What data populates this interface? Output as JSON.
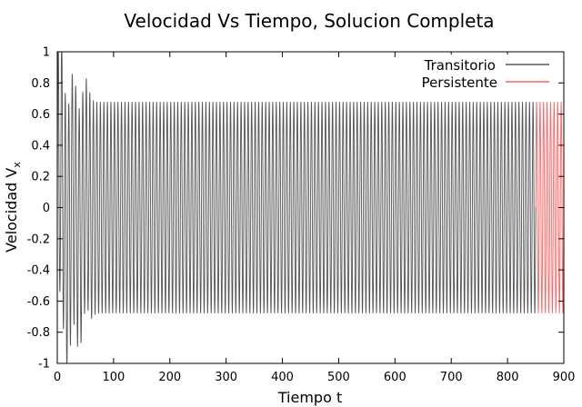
{
  "chart_data": {
    "type": "line",
    "title": "Velocidad Vs Tiempo, Solucion Completa",
    "xlabel": "Tiempo t",
    "ylabel_main": "Velocidad V",
    "ylabel_sub": "x",
    "xlim": [
      0,
      900
    ],
    "ylim": [
      -1,
      1
    ],
    "x_ticks": [
      0,
      100,
      200,
      300,
      400,
      500,
      600,
      700,
      800,
      900
    ],
    "x_tick_labels": [
      "0",
      "100",
      "200",
      "300",
      "400",
      "500",
      "600",
      "700",
      "800",
      "900"
    ],
    "y_ticks": [
      -1,
      -0.8,
      -0.6,
      -0.4,
      -0.2,
      0,
      0.2,
      0.4,
      0.6,
      0.8,
      1
    ],
    "y_tick_labels": [
      "-1",
      "-0.8",
      "-0.6",
      "-0.4",
      "-0.2",
      "0",
      "0.2",
      "0.4",
      "0.6",
      "0.8",
      "1"
    ],
    "grid": false,
    "legend_position": "top-right",
    "series": [
      {
        "name": "Transitorio",
        "color": "#555555",
        "x_range": [
          0,
          850
        ],
        "steady_amplitude": 0.68,
        "period": 6.25,
        "transient_amplitude": 0.9,
        "transient_duration": 70
      },
      {
        "name": "Persistente",
        "color": "#ff6666",
        "x_range": [
          850,
          900
        ],
        "steady_amplitude": 0.68,
        "period": 6.25
      }
    ]
  }
}
